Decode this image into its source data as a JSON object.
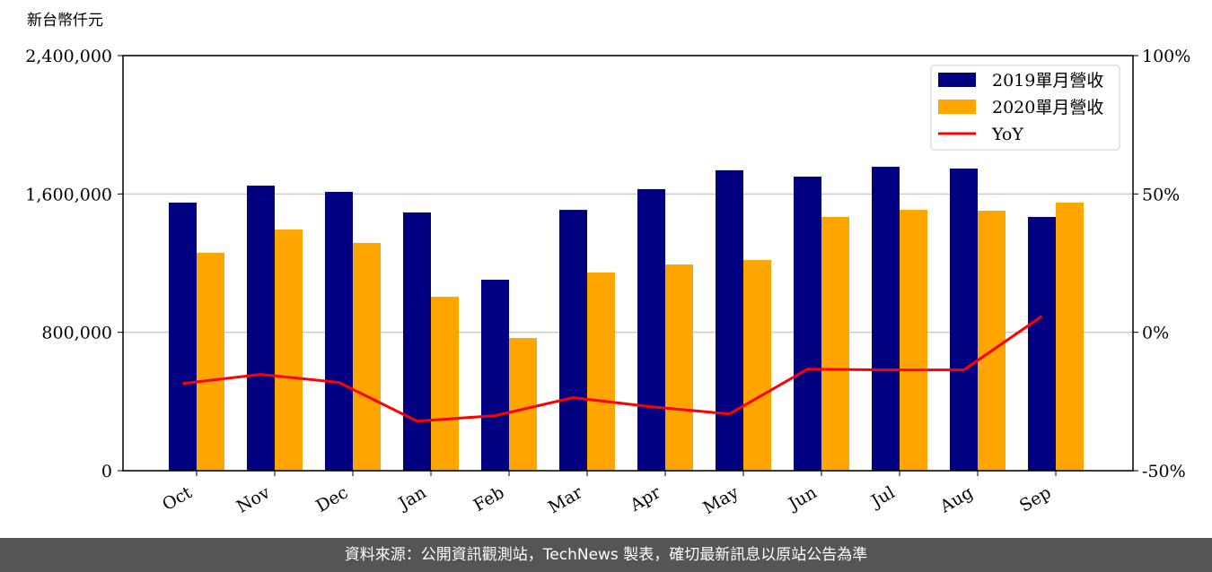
{
  "chart_data": {
    "type": "bar",
    "y_label": "新台幣仟元",
    "categories": [
      "Oct",
      "Nov",
      "Dec",
      "Jan",
      "Feb",
      "Mar",
      "Apr",
      "May",
      "Jun",
      "Jul",
      "Aug",
      "Sep"
    ],
    "series": [
      {
        "name": "2019單月營收",
        "color": "#000080",
        "values": [
          1550000,
          1648000,
          1612000,
          1493000,
          1104000,
          1508000,
          1628000,
          1737000,
          1700000,
          1757000,
          1747000,
          1467000
        ]
      },
      {
        "name": "2020單月營收",
        "color": "#ffa500",
        "values": [
          1260000,
          1394000,
          1317000,
          1006000,
          767000,
          1146000,
          1192000,
          1218000,
          1467000,
          1508000,
          1503000,
          1550000
        ]
      },
      {
        "name": "YoY",
        "type": "line",
        "axis": "y2",
        "color": "#ff0000",
        "values": [
          -18.5,
          -15.2,
          -18.1,
          -32.1,
          -30.1,
          -23.6,
          -26.9,
          -29.5,
          -13.3,
          -13.6,
          -13.6,
          5.8
        ]
      }
    ],
    "ylim": [
      0,
      2400000
    ],
    "yticks": [
      0,
      {
        "value": 800000,
        "label": "800,000"
      },
      {
        "value": 1600000,
        "label": "1,600,000"
      },
      {
        "value": 2400000,
        "label": "2,400,000"
      }
    ],
    "y2lim": [
      -50,
      100
    ],
    "y2ticks": [
      {
        "value": -50,
        "label": "-50%"
      },
      {
        "value": 0,
        "label": "0%"
      },
      {
        "value": 50,
        "label": "50%"
      },
      {
        "value": 100,
        "label": "100%"
      }
    ],
    "grid": true,
    "legend": "upper right"
  },
  "footer": "資料來源：公開資訊觀測站，TechNews 製表，確切最新訊息以原站公告為準"
}
